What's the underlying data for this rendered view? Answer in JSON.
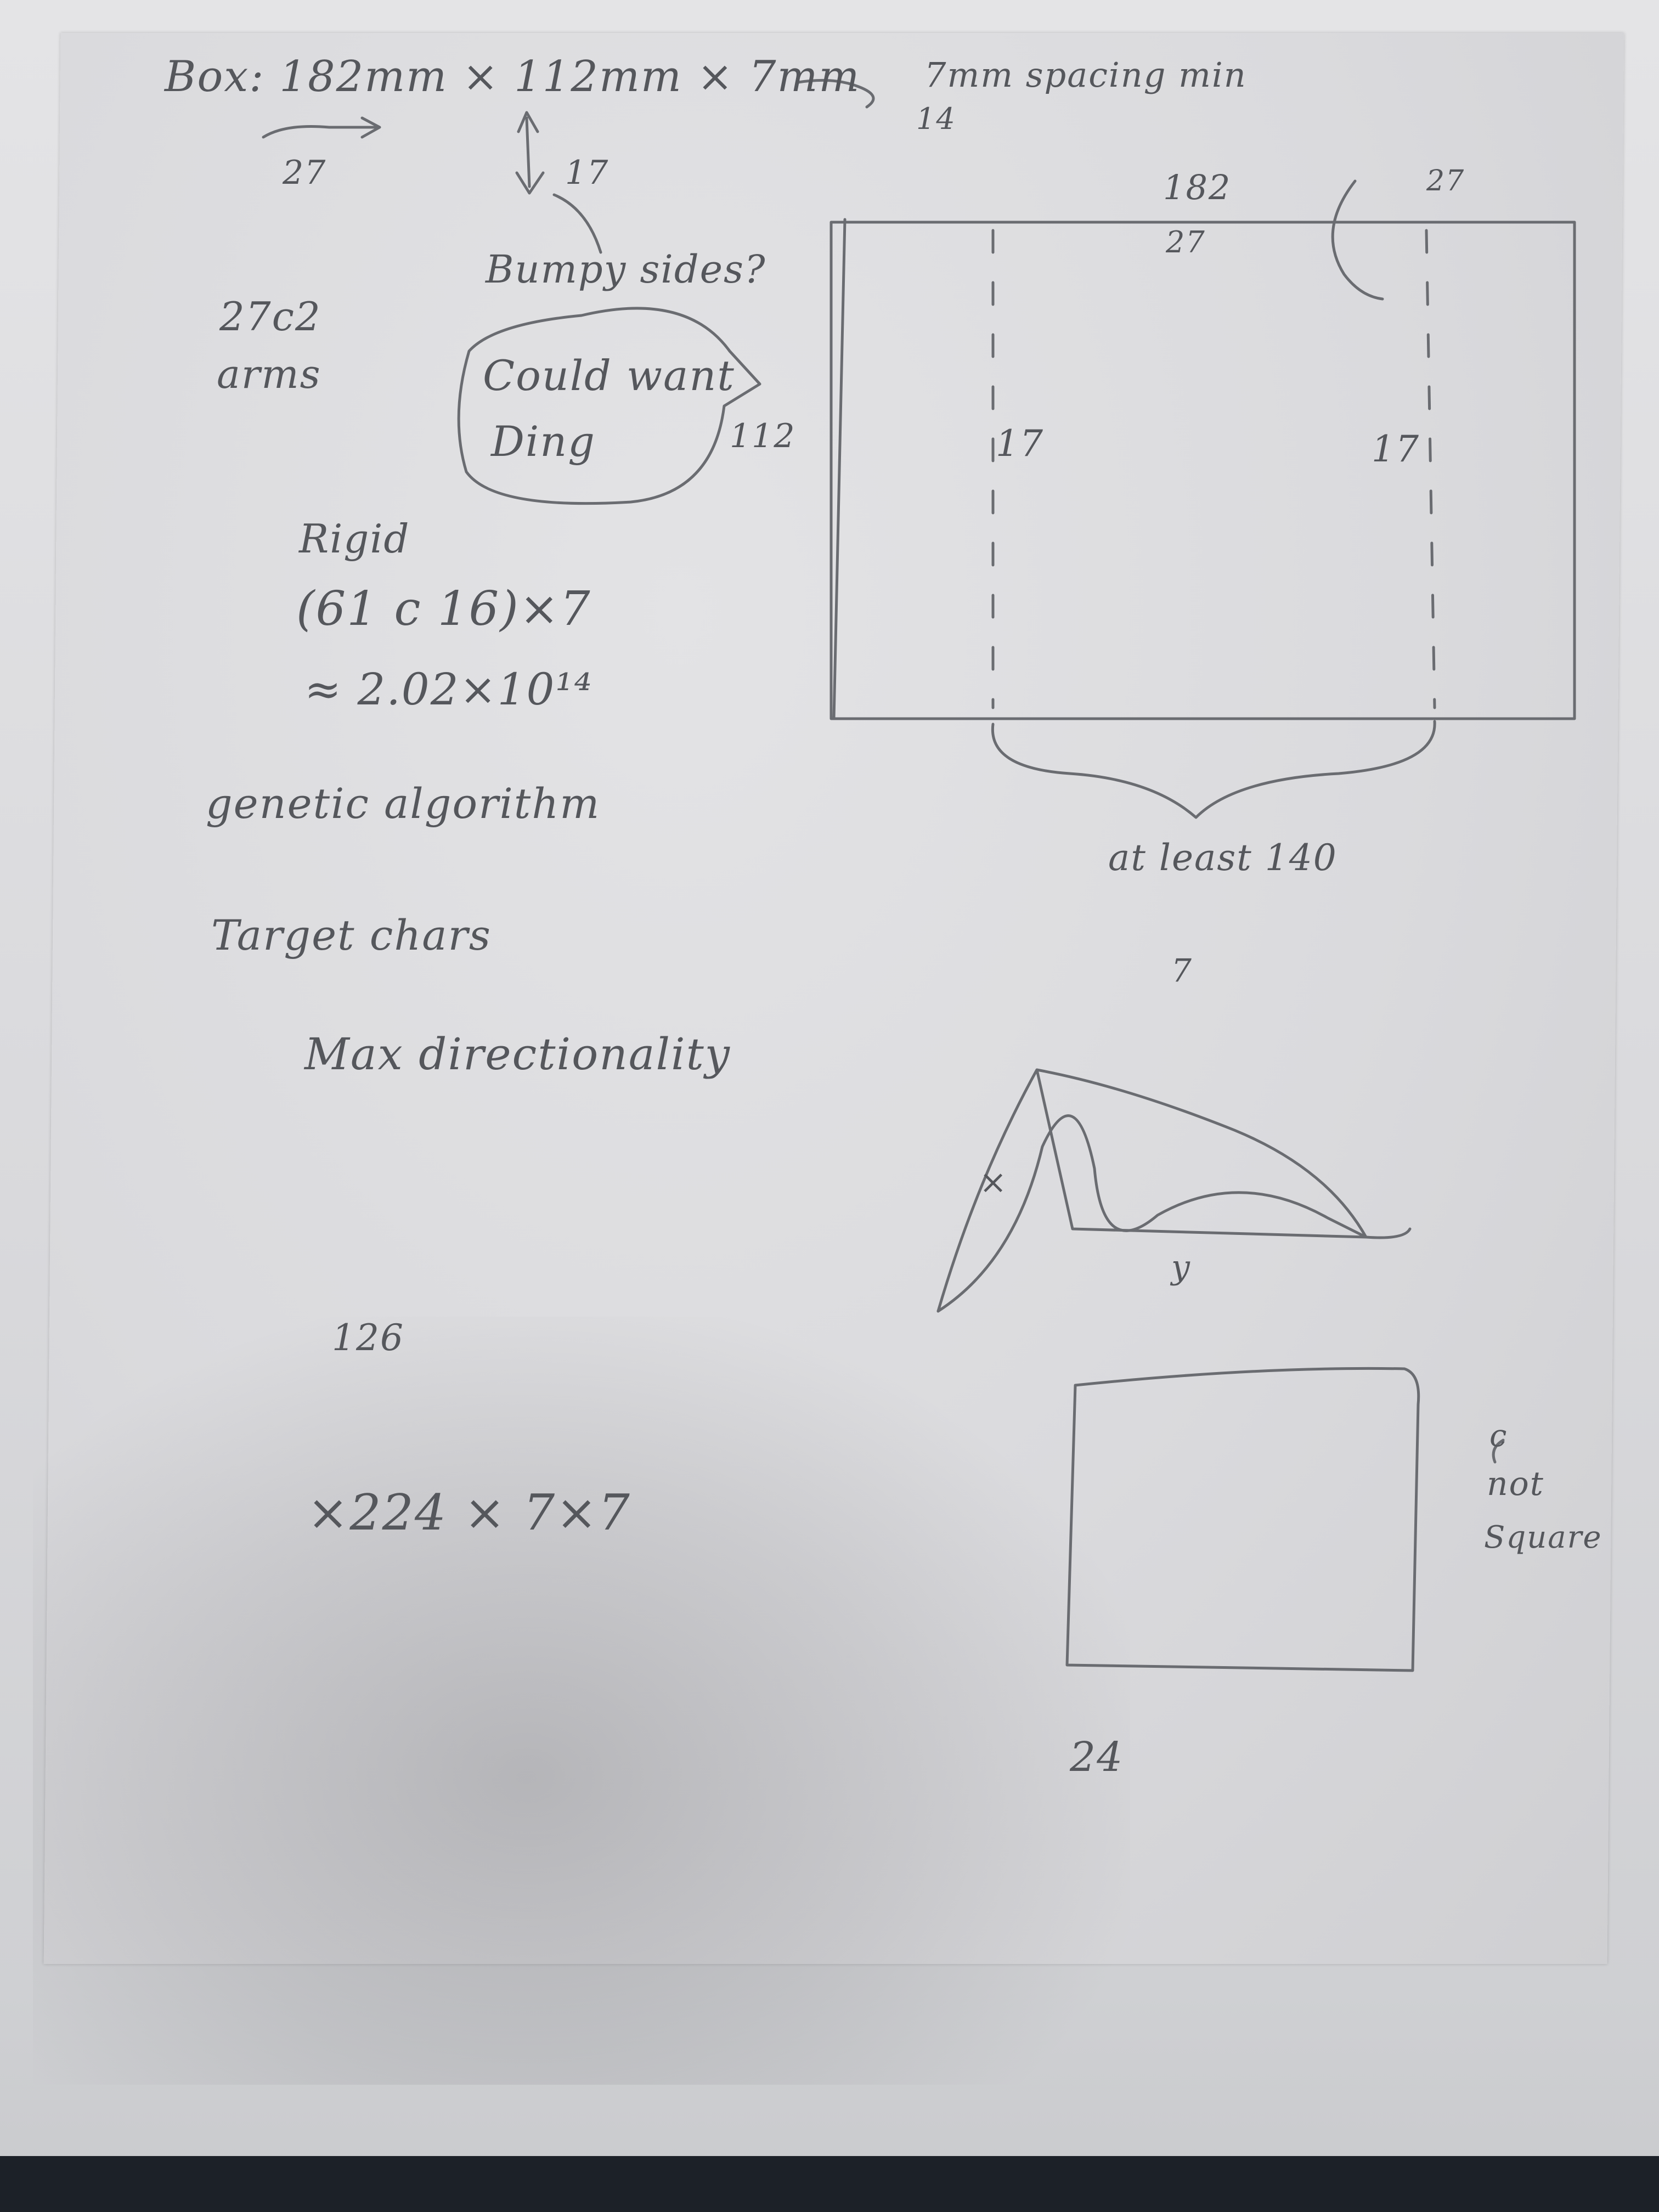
{
  "notes": {
    "box_dimensions": "Box: 182mm × 112mm × 7mm",
    "spacing": "7mm spacing min",
    "spacing_sub": "14",
    "width_label": "27",
    "height_label": "17",
    "arms_ratio": "27c2",
    "arms": "arms",
    "bumpy": "Bumpy sides?",
    "could_want": "Could want",
    "ding": "Ding",
    "side_112": "112",
    "rigid": "Rigid",
    "rigid_formula": "(61 c 16)×7",
    "rigid_approx": "≈ 2.02×10¹⁴",
    "genetic": "genetic algorithm",
    "target_chars": "Target chars",
    "max_directionality": "Max directionality",
    "n126": "126",
    "product": "×224 × 7×7"
  },
  "diagram": {
    "top_182": "182",
    "top_27_right": "27",
    "inner_27": "27",
    "left_17": "17",
    "right_17": "17",
    "at_least": "at least 140",
    "seven": "7",
    "x_mark": "×",
    "y_mark": "y",
    "square_label_c": "c",
    "square_label_not": "not",
    "square_label_square": "Square",
    "bottom_24": "24"
  }
}
